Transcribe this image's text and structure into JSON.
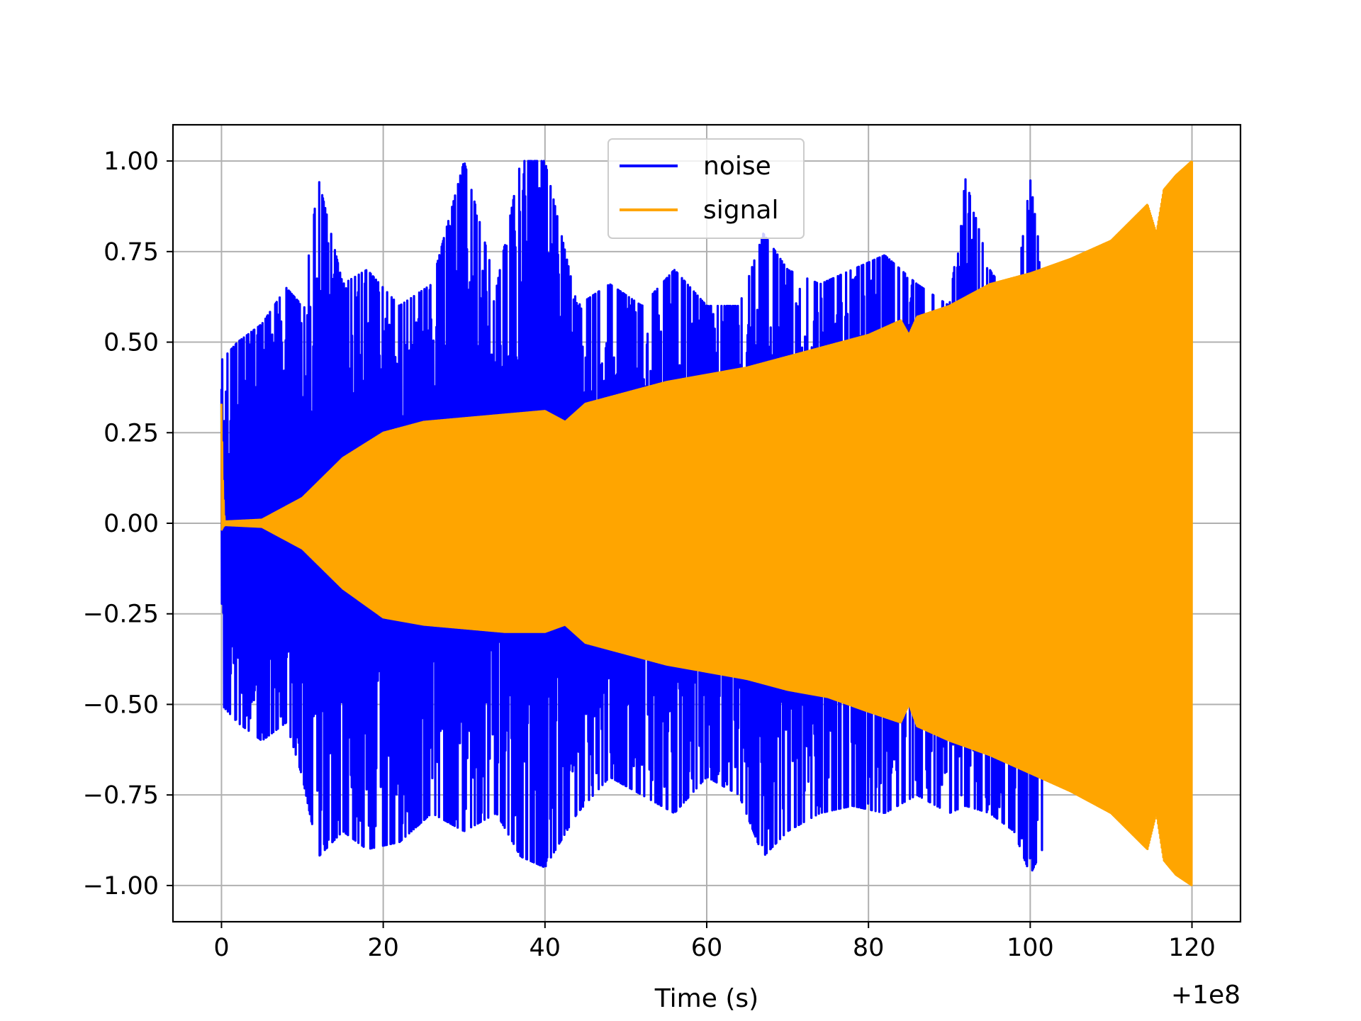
{
  "chart_data": {
    "type": "line",
    "xlabel": "Time (s)",
    "ylabel": "",
    "x_offset_label": "+1e8",
    "xlim": [
      -6,
      126
    ],
    "ylim": [
      -1.1,
      1.1
    ],
    "x_ticks": [
      0,
      20,
      40,
      60,
      80,
      100,
      120
    ],
    "y_ticks": [
      1.0,
      0.75,
      0.5,
      0.25,
      0.0,
      -0.25,
      -0.5,
      -0.75,
      -1.0
    ],
    "x_tick_labels": [
      "0",
      "20",
      "40",
      "60",
      "80",
      "100",
      "120"
    ],
    "y_tick_labels": [
      "1.00",
      "0.75",
      "0.50",
      "0.25",
      "0.00",
      "−0.25",
      "−0.50",
      "−0.75",
      "−1.00"
    ],
    "grid": true,
    "legend_position": "upper center",
    "series": [
      {
        "name": "noise",
        "color": "#0000ff",
        "x_range": [
          0,
          101.5
        ],
        "envelope": {
          "x": [
            0,
            2,
            5,
            8,
            10,
            12,
            15,
            18,
            22,
            26,
            30,
            34,
            37,
            40,
            44,
            48,
            52,
            56,
            60,
            64,
            67,
            70,
            74,
            78,
            82,
            86,
            90,
            92,
            95,
            98,
            100,
            101.5
          ],
          "upper": [
            0.45,
            0.5,
            0.55,
            0.65,
            0.6,
            0.95,
            0.66,
            0.7,
            0.6,
            0.66,
            1.0,
            0.65,
            1.0,
            1.0,
            0.6,
            0.66,
            0.6,
            0.7,
            0.6,
            0.6,
            0.8,
            0.7,
            0.66,
            0.7,
            0.74,
            0.66,
            0.6,
            0.95,
            0.7,
            0.6,
            0.95,
            0.7
          ],
          "lower": [
            -0.5,
            -0.55,
            -0.6,
            -0.55,
            -0.7,
            -0.92,
            -0.85,
            -0.9,
            -0.88,
            -0.8,
            -0.85,
            -0.8,
            -0.92,
            -0.95,
            -0.8,
            -0.7,
            -0.75,
            -0.8,
            -0.7,
            -0.75,
            -0.92,
            -0.85,
            -0.8,
            -0.78,
            -0.8,
            -0.75,
            -0.8,
            -0.78,
            -0.8,
            -0.85,
            -0.97,
            -0.9
          ]
        }
      },
      {
        "name": "signal",
        "color": "#ffa500",
        "x_range": [
          0,
          120
        ],
        "envelope": {
          "x": [
            0,
            0.2,
            0.4,
            5,
            10,
            15,
            20,
            25,
            30,
            35,
            40,
            42.5,
            45,
            50,
            55,
            60,
            65,
            70,
            75,
            80,
            84,
            85,
            86,
            90,
            95,
            100,
            105,
            110,
            114.5,
            115.6,
            116.5,
            118,
            120
          ],
          "upper": [
            0.33,
            0.1,
            0.005,
            0.01,
            0.07,
            0.18,
            0.25,
            0.28,
            0.29,
            0.3,
            0.31,
            0.28,
            0.33,
            0.36,
            0.39,
            0.41,
            0.43,
            0.46,
            0.49,
            0.52,
            0.56,
            0.52,
            0.57,
            0.6,
            0.66,
            0.69,
            0.73,
            0.78,
            0.88,
            0.8,
            0.92,
            0.96,
            1.0
          ],
          "lower": [
            -0.02,
            -0.01,
            -0.005,
            -0.01,
            -0.07,
            -0.18,
            -0.26,
            -0.28,
            -0.29,
            -0.3,
            -0.3,
            -0.28,
            -0.33,
            -0.36,
            -0.39,
            -0.41,
            -0.43,
            -0.46,
            -0.48,
            -0.52,
            -0.55,
            -0.5,
            -0.56,
            -0.6,
            -0.64,
            -0.69,
            -0.74,
            -0.8,
            -0.9,
            -0.8,
            -0.93,
            -0.97,
            -1.0
          ]
        }
      }
    ]
  }
}
